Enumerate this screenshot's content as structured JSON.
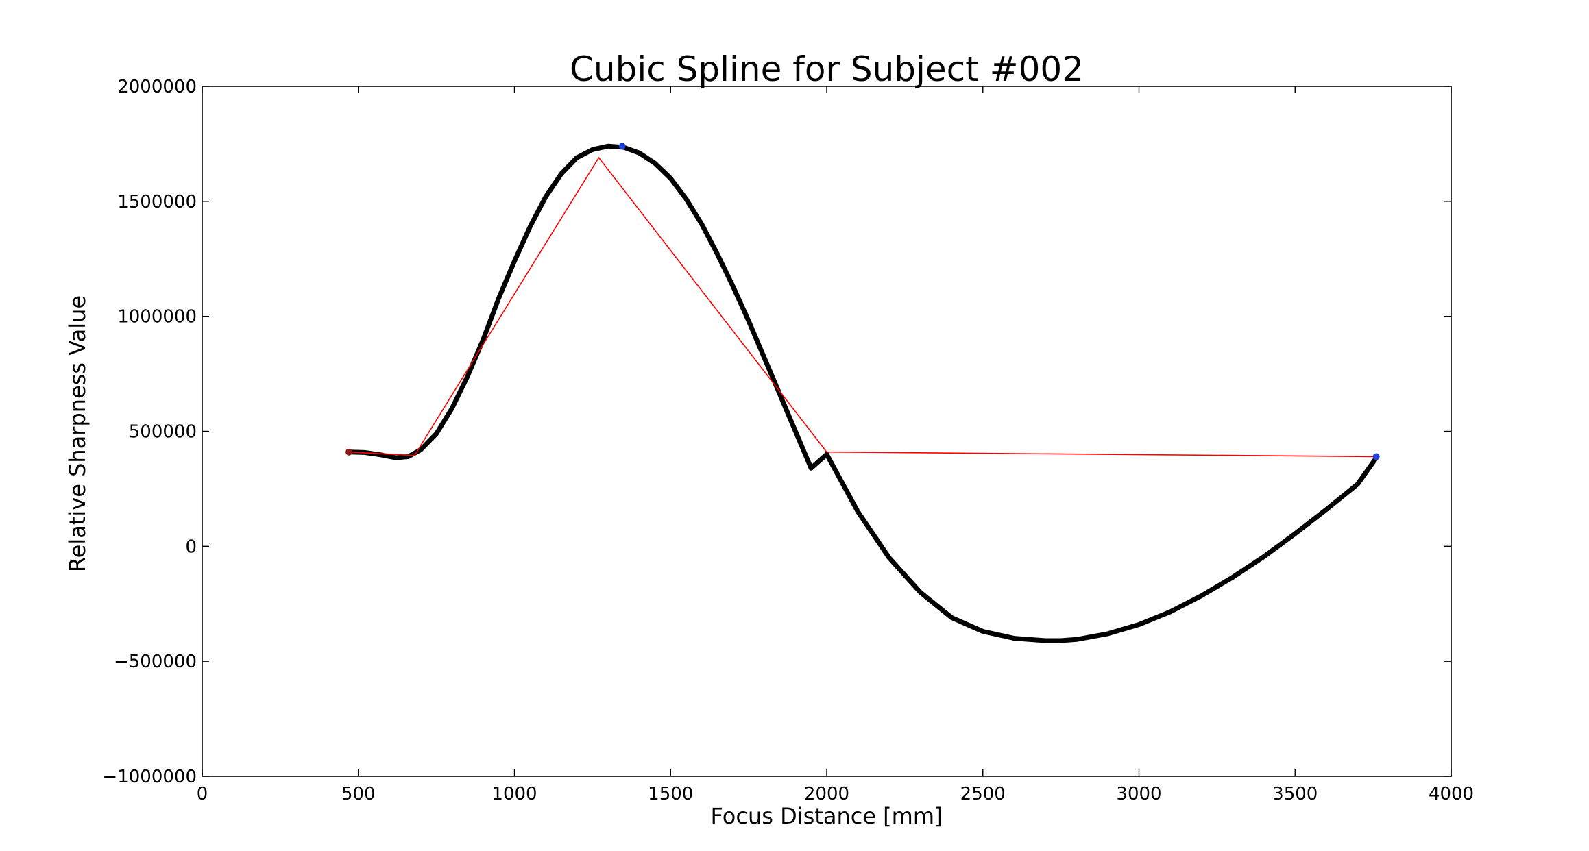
{
  "chart_data": {
    "type": "line",
    "title": "Cubic Spline for Subject #002",
    "xlabel": "Focus Distance [mm]",
    "ylabel": "Relative Sharpness Value",
    "xlim": [
      0,
      4000
    ],
    "ylim": [
      -1000000,
      2000000
    ],
    "x_ticks": [
      0,
      500,
      1000,
      1500,
      2000,
      2500,
      3000,
      3500,
      4000
    ],
    "x_tick_labels": [
      "0",
      "500",
      "1000",
      "1500",
      "2000",
      "2500",
      "3000",
      "3500",
      "4000"
    ],
    "y_ticks": [
      -1000000,
      -500000,
      0,
      500000,
      1000000,
      1500000,
      2000000
    ],
    "y_tick_labels": [
      "−1000000",
      "−500000",
      "0",
      "500000",
      "1000000",
      "1500000",
      "2000000"
    ],
    "grid": false,
    "series": [
      {
        "style": "thick-black-curve",
        "color": "#000000",
        "x": [
          470,
          520,
          570,
          620,
          660,
          700,
          750,
          800,
          850,
          900,
          950,
          1000,
          1050,
          1100,
          1150,
          1200,
          1250,
          1300,
          1350,
          1400,
          1450,
          1500,
          1550,
          1600,
          1650,
          1700,
          1750,
          1800,
          1850,
          1900,
          1950,
          2000,
          2100,
          2200,
          2300,
          2400,
          2500,
          2600,
          2700,
          2750,
          2800,
          2900,
          3000,
          3100,
          3200,
          3300,
          3400,
          3500,
          3600,
          3700,
          3760
        ],
        "y": [
          410000,
          408000,
          398000,
          385000,
          390000,
          420000,
          490000,
          600000,
          740000,
          900000,
          1080000,
          1240000,
          1390000,
          1520000,
          1620000,
          1690000,
          1725000,
          1740000,
          1735000,
          1710000,
          1665000,
          1600000,
          1510000,
          1400000,
          1270000,
          1130000,
          980000,
          820000,
          660000,
          500000,
          340000,
          400000,
          150000,
          -50000,
          -200000,
          -310000,
          -370000,
          -400000,
          -410000,
          -410000,
          -405000,
          -380000,
          -340000,
          -285000,
          -215000,
          -135000,
          -45000,
          55000,
          160000,
          270000,
          385000
        ]
      },
      {
        "style": "thin-red-polyline",
        "color": "#ff0000",
        "x": [
          470,
          680,
          1270,
          2000,
          3760
        ],
        "y": [
          410000,
          395000,
          1690000,
          410000,
          390000
        ]
      }
    ],
    "markers": [
      {
        "color": "#1f3fd6",
        "x": 1345,
        "y": 1740000
      },
      {
        "color": "#1f3fd6",
        "x": 3760,
        "y": 390000
      },
      {
        "color": "#8b1a1a",
        "x": 470,
        "y": 410000
      }
    ]
  }
}
